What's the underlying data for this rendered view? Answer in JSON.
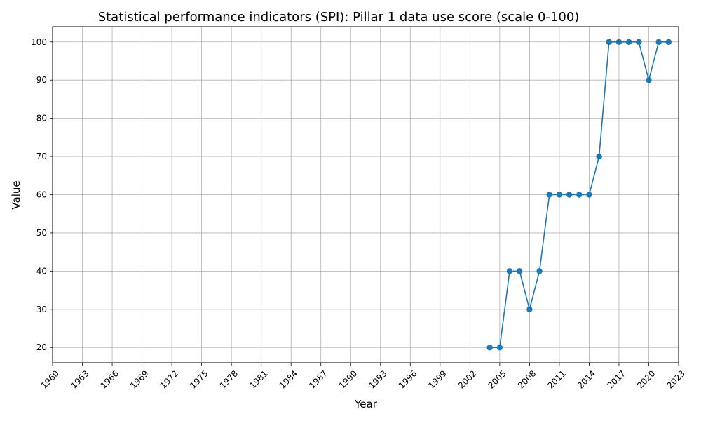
{
  "chart_data": {
    "type": "line",
    "title": "Statistical performance indicators (SPI): Pillar 1 data use score (scale 0-100)",
    "xlabel": "Year",
    "ylabel": "Value",
    "xlim": [
      1960,
      2023
    ],
    "ylim": [
      16,
      104
    ],
    "x_ticks": [
      1960,
      1963,
      1966,
      1969,
      1972,
      1975,
      1978,
      1981,
      1984,
      1987,
      1990,
      1993,
      1996,
      1999,
      2002,
      2005,
      2008,
      2011,
      2014,
      2017,
      2020,
      2023
    ],
    "y_ticks": [
      20,
      30,
      40,
      50,
      60,
      70,
      80,
      90,
      100
    ],
    "grid": true,
    "series": [
      {
        "color": "#1f77b4",
        "marker": "circle",
        "x": [
          2004,
          2005,
          2006,
          2007,
          2008,
          2009,
          2010,
          2011,
          2012,
          2013,
          2014,
          2015,
          2016,
          2017,
          2018,
          2019,
          2020,
          2021,
          2022
        ],
        "values": [
          20,
          20,
          40,
          40,
          30,
          40,
          60,
          60,
          60,
          60,
          60,
          70,
          100,
          100,
          100,
          100,
          90,
          100,
          100
        ]
      }
    ]
  }
}
